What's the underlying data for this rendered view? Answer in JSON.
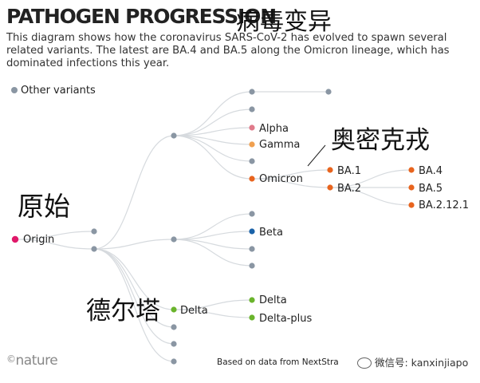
{
  "header": {
    "title": "PATHOGEN PROGRESSION",
    "title_cn": "病毒变异",
    "subtitle": "This diagram shows how the coronavirus SARS-CoV-2 has evolved to spawn several related variants. The latest are BA.4 and BA.5 along the Omicron lineage, which has dominated infections this year."
  },
  "legend": {
    "other_label": "Other variants"
  },
  "colors": {
    "origin": "#e0196a",
    "alpha": "#e07a8a",
    "gamma": "#f0a050",
    "omicron": "#e8641e",
    "beta": "#1a62a8",
    "delta": "#6ab42c",
    "other": "#8a96a3",
    "link": "#d6dade"
  },
  "nodes": {
    "origin": "Origin",
    "alpha": "Alpha",
    "gamma": "Gamma",
    "omicron": "Omicron",
    "beta": "Beta",
    "delta_parent": "Delta",
    "delta": "Delta",
    "delta_plus": "Delta-plus",
    "ba1": "BA.1",
    "ba2": "BA.2",
    "ba4": "BA.4",
    "ba5": "BA.5",
    "ba2121": "BA.2.12.1"
  },
  "annotations": {
    "origin_cn": "原始",
    "omicron_cn": "奥密克戎",
    "delta_cn": "德尔塔"
  },
  "footer": {
    "logo": "nature",
    "source": "Based on data from NextStra",
    "wechat": "微信号: kanxinjiapo"
  }
}
